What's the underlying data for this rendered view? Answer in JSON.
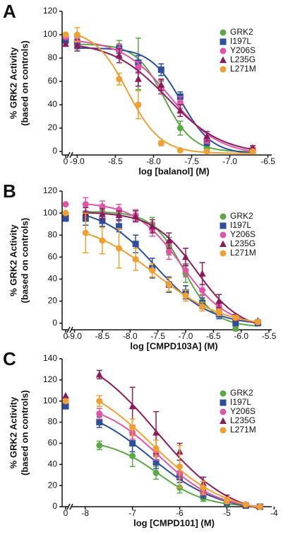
{
  "chart_data": [
    {
      "type": "scatter",
      "panel_label": "A",
      "ylabel": [
        "% GRK2 Activity",
        "(based on controls)"
      ],
      "xlabel": "log [balanol] (M)",
      "control_label": "0",
      "x": [
        -9.0,
        -8.45,
        -8.2,
        -7.9,
        -7.65,
        -7.3,
        -6.7
      ],
      "xlim": [
        -9.05,
        -6.45
      ],
      "xticks": [
        {
          "value": -9,
          "label": "-9.0"
        },
        {
          "value": -8.5,
          "label": "-8.5"
        },
        {
          "value": -8,
          "label": "-8.0"
        },
        {
          "value": -7.5,
          "label": "-7.5"
        },
        {
          "value": -7,
          "label": "-7.0"
        },
        {
          "value": -6.5,
          "label": "-6.5"
        }
      ],
      "ylim": [
        -3,
        120
      ],
      "yticks": [
        0,
        20,
        40,
        60,
        80,
        100,
        120
      ],
      "series": [
        {
          "name": "GRK2",
          "color": "#5aaa46",
          "marker": "circle",
          "control": 100,
          "values": [
            92,
            90,
            75,
            55,
            20,
            3,
            1
          ],
          "errors": [
            4,
            5,
            22,
            5,
            6,
            2,
            1
          ]
        },
        {
          "name": "I197L",
          "color": "#2c4f9e",
          "marker": "square",
          "control": 95,
          "values": [
            93,
            88,
            76,
            70,
            47,
            8,
            1
          ],
          "errors": [
            5,
            4,
            6,
            5,
            4,
            3,
            1
          ]
        },
        {
          "name": "Y206S",
          "color": "#e055a8",
          "marker": "circle",
          "control": 98,
          "values": [
            95,
            87,
            72,
            55,
            42,
            10,
            2
          ],
          "errors": [
            4,
            5,
            5,
            6,
            5,
            3,
            1
          ]
        },
        {
          "name": "L235G",
          "color": "#8b1c5c",
          "marker": "triangle",
          "control": 92,
          "values": [
            91,
            82,
            62,
            57,
            35,
            13,
            3
          ],
          "errors": [
            5,
            6,
            6,
            5,
            5,
            4,
            2
          ]
        },
        {
          "name": "L271M",
          "color": "#f0a030",
          "marker": "circle",
          "control": 100,
          "values": [
            100,
            62,
            40,
            7,
            1,
            0,
            0
          ],
          "errors": [
            6,
            5,
            12,
            2,
            1,
            1,
            1
          ]
        }
      ]
    },
    {
      "type": "scatter",
      "panel_label": "B",
      "ylabel": [
        "% GRK2 Activity",
        "(based on controls)"
      ],
      "xlabel": "log [CMPD103A] (M)",
      "control_label": "0",
      "x": [
        -8.8,
        -8.5,
        -8.2,
        -7.9,
        -7.6,
        -7.3,
        -7.0,
        -6.7,
        -6.4,
        -6.1,
        -5.7
      ],
      "xlim": [
        -9.02,
        -5.45
      ],
      "xticks": [
        {
          "value": -9,
          "label": "-9.0"
        },
        {
          "value": -8.5,
          "label": "-8.5"
        },
        {
          "value": -8,
          "label": "-8.0"
        },
        {
          "value": -7.5,
          "label": "-7.5"
        },
        {
          "value": -7,
          "label": "-7.0"
        },
        {
          "value": -6.5,
          "label": "-6.5"
        },
        {
          "value": -6,
          "label": "-6.0"
        },
        {
          "value": -5.5,
          "label": "-5.5"
        }
      ],
      "ylim": [
        -6,
        120
      ],
      "yticks": [
        0,
        20,
        40,
        60,
        80,
        100,
        120
      ],
      "series": [
        {
          "name": "GRK2",
          "color": "#5aaa46",
          "marker": "circle",
          "control": 100,
          "values": [
            100,
            101,
            100,
            98,
            90,
            70,
            45,
            20,
            10,
            -5,
            0
          ],
          "errors": [
            5,
            4,
            4,
            5,
            6,
            8,
            8,
            6,
            4,
            2,
            1
          ]
        },
        {
          "name": "I197L",
          "color": "#2c4f9e",
          "marker": "square",
          "control": 95,
          "values": [
            95,
            93,
            88,
            72,
            50,
            35,
            28,
            18,
            8,
            0,
            0
          ],
          "errors": [
            6,
            5,
            5,
            8,
            9,
            7,
            6,
            5,
            4,
            2,
            1
          ]
        },
        {
          "name": "Y206S",
          "color": "#e055a8",
          "marker": "circle",
          "control": 108,
          "values": [
            108,
            106,
            103,
            98,
            85,
            65,
            48,
            30,
            15,
            5,
            1
          ],
          "errors": [
            6,
            5,
            5,
            5,
            6,
            7,
            6,
            5,
            4,
            2,
            1
          ]
        },
        {
          "name": "L235G",
          "color": "#8b1c5c",
          "marker": "triangle",
          "control": 100,
          "values": [
            100,
            99,
            98,
            97,
            88,
            75,
            60,
            45,
            20,
            5,
            2
          ],
          "errors": [
            5,
            5,
            4,
            5,
            6,
            7,
            8,
            10,
            6,
            3,
            1
          ]
        },
        {
          "name": "L271M",
          "color": "#f0a030",
          "marker": "circle",
          "control": 100,
          "values": [
            82,
            75,
            68,
            58,
            48,
            35,
            25,
            15,
            10,
            5,
            1
          ],
          "errors": [
            18,
            12,
            18,
            10,
            6,
            6,
            5,
            4,
            3,
            2,
            1
          ]
        }
      ]
    },
    {
      "type": "scatter",
      "panel_label": "C",
      "ylabel": [
        "% GRK2 Activity",
        "(based on controls)"
      ],
      "xlabel": "log [CMPD101] (M)",
      "control_label": "0",
      "x": [
        -7.7,
        -7.0,
        -6.5,
        -6.0,
        -5.5,
        -5.0,
        -4.6,
        -4.3
      ],
      "xlim": [
        -8.25,
        -4.05
      ],
      "xticks": [
        -8,
        -7,
        -6,
        -5,
        -4
      ],
      "ylim": [
        0,
        140
      ],
      "yticks": [
        0,
        20,
        40,
        60,
        80,
        100,
        120,
        140
      ],
      "series": [
        {
          "name": "GRK2",
          "color": "#5aaa46",
          "marker": "circle",
          "control": 100,
          "values": [
            58,
            48,
            32,
            18,
            8,
            3,
            1,
            0
          ],
          "errors": [
            4,
            10,
            6,
            5,
            3,
            2,
            1,
            1
          ]
        },
        {
          "name": "I197L",
          "color": "#2c4f9e",
          "marker": "square",
          "control": 95,
          "values": [
            80,
            60,
            42,
            28,
            12,
            4,
            1,
            0
          ],
          "errors": [
            5,
            8,
            6,
            5,
            4,
            2,
            1,
            1
          ]
        },
        {
          "name": "Y206S",
          "color": "#e055a8",
          "marker": "circle",
          "control": 100,
          "values": [
            88,
            70,
            50,
            32,
            15,
            5,
            2,
            0
          ],
          "errors": [
            5,
            6,
            6,
            5,
            4,
            2,
            1,
            1
          ]
        },
        {
          "name": "L235G",
          "color": "#8b1c5c",
          "marker": "triangle",
          "control": 105,
          "values": [
            125,
            95,
            70,
            52,
            22,
            8,
            2,
            0
          ],
          "errors": [
            4,
            18,
            20,
            8,
            6,
            3,
            1,
            1
          ]
        },
        {
          "name": "L271M",
          "color": "#f0a030",
          "marker": "circle",
          "control": 100,
          "values": [
            100,
            75,
            55,
            38,
            18,
            6,
            2,
            0
          ],
          "errors": [
            5,
            8,
            8,
            20,
            6,
            3,
            1,
            1
          ]
        }
      ]
    }
  ]
}
